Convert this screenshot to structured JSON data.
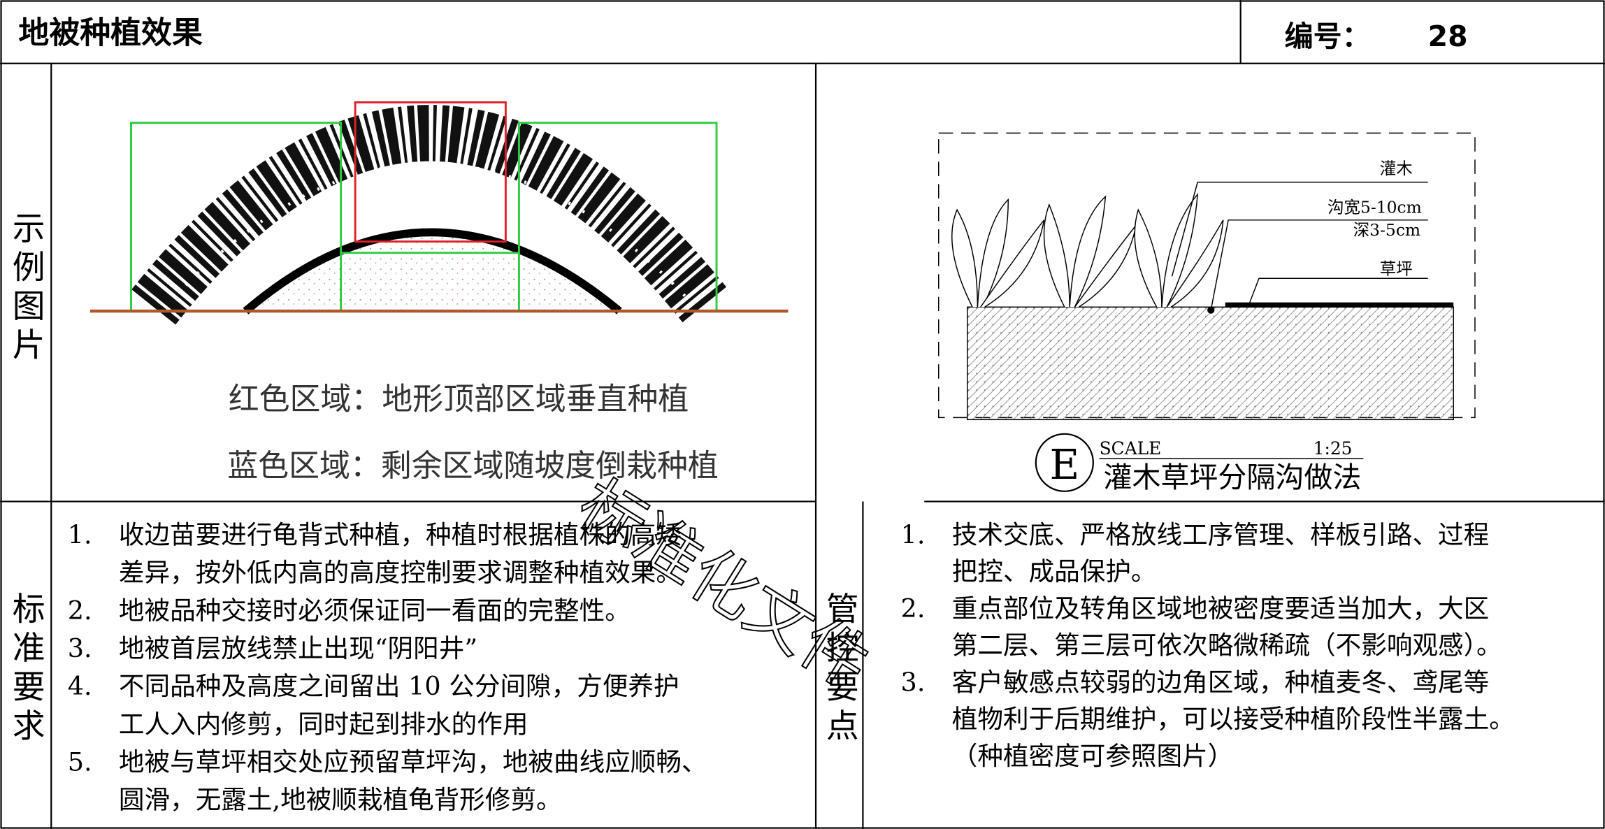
{
  "header": {
    "title": "地被种植效果",
    "number_label": "编号：",
    "number": "28"
  },
  "example": {
    "label": "示例图片",
    "left_captions": [
      "红色区域：地形顶部区域垂直种植",
      "蓝色区域：剩余区域随坡度倒栽种植"
    ],
    "drawing": {
      "labels": [
        "灌木",
        "沟宽5-10cm",
        "深3-5cm",
        "草坪"
      ],
      "detail_mark": "E",
      "scale_label": "SCALE",
      "scale": "1:25",
      "detail_title": "灌木草坪分隔沟做法"
    }
  },
  "watermark": "标准化文件",
  "standards": {
    "label": "标准要求",
    "items": [
      {
        "number": "1.",
        "lines": [
          "收边苗要进行龟背式种植，种植时根据植株的高矮",
          "差异，按外低内高的高度控制要求调整种植效果。"
        ]
      },
      {
        "number": "2.",
        "lines": [
          "地被品种交接时必须保证同一看面的完整性。"
        ]
      },
      {
        "number": "3.",
        "lines": [
          "地被首层放线禁止出现“阴阳井”"
        ]
      },
      {
        "number": "4.",
        "lines": [
          "不同品种及高度之间留出 10 公分间隙，方便养护",
          "工人入内修剪，同时起到排水的作用"
        ]
      },
      {
        "number": "5.",
        "lines": [
          "地被与草坪相交处应预留草坪沟，地被曲线应顺畅、",
          "圆滑，无露土,地被顺栽植龟背形修剪。"
        ]
      }
    ]
  },
  "control": {
    "label": "管控要点",
    "items": [
      {
        "number": "1.",
        "lines": [
          "技术交底、严格放线工序管理、样板引路、过程",
          "把控、成品保护。"
        ]
      },
      {
        "number": "2.",
        "lines": [
          "重点部位及转角区域地被密度要适当加大，大区",
          "第二层、第三层可依次略微稀疏（不影响观感）。"
        ]
      },
      {
        "number": "3.",
        "lines": [
          "客户敏感点较弱的边角区域，种植麦冬、鸢尾等",
          "植物利于后期维护，可以接受种植阶段性半露土。",
          "（种植密度可参照图片）"
        ]
      }
    ]
  }
}
